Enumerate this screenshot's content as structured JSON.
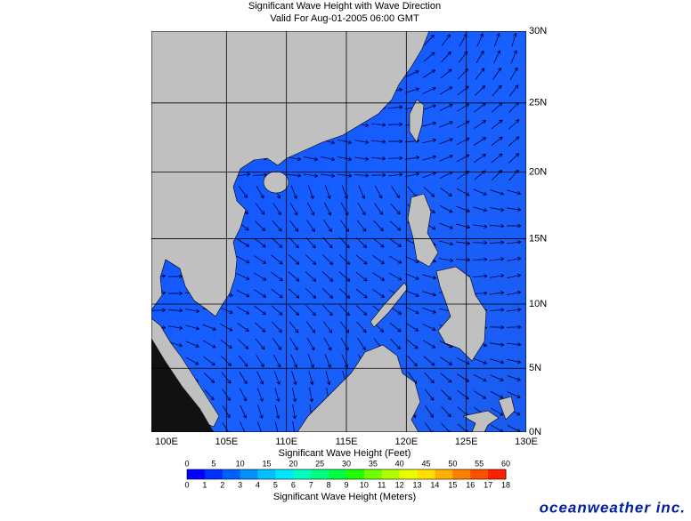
{
  "header": {
    "title": "Significant Wave Height with Wave Direction",
    "subtitle": "Valid For Aug-01-2005 06:00 GMT"
  },
  "map": {
    "lon_ticks": [
      {
        "value": 100,
        "label": "100E"
      },
      {
        "value": 105,
        "label": "105E"
      },
      {
        "value": 110,
        "label": "110E"
      },
      {
        "value": 115,
        "label": "115E"
      },
      {
        "value": 120,
        "label": "120E"
      },
      {
        "value": 125,
        "label": "125E"
      },
      {
        "value": 130,
        "label": "130E"
      }
    ],
    "lat_ticks": [
      {
        "value": 0,
        "label": "0N"
      },
      {
        "value": 5,
        "label": "5N"
      },
      {
        "value": 10,
        "label": "10N"
      },
      {
        "value": 15,
        "label": "15N"
      },
      {
        "value": 20,
        "label": "20N"
      },
      {
        "value": 25,
        "label": "25N"
      },
      {
        "value": 30,
        "label": "30N"
      }
    ]
  },
  "colorbar": {
    "feet_label": "Significant Wave Height (Feet)",
    "feet_ticks": [
      0,
      5,
      10,
      15,
      20,
      25,
      30,
      35,
      40,
      45,
      50,
      55,
      60
    ],
    "meters_label": "Significant Wave Height (Meters)",
    "meters_ticks": [
      0,
      1,
      2,
      3,
      4,
      5,
      6,
      7,
      8,
      9,
      10,
      11,
      12,
      13,
      14,
      15,
      16,
      17,
      18
    ],
    "colors": [
      "#0000ff",
      "#0030ff",
      "#0060ff",
      "#0090ff",
      "#00c0ff",
      "#00e8ff",
      "#00ffc0",
      "#00ff80",
      "#00ff40",
      "#20ff00",
      "#70ff00",
      "#b0ff00",
      "#e8ff00",
      "#ffe000",
      "#ffb000",
      "#ff8000",
      "#ff5000",
      "#ff2000"
    ]
  },
  "logo": "oceanweather inc."
}
